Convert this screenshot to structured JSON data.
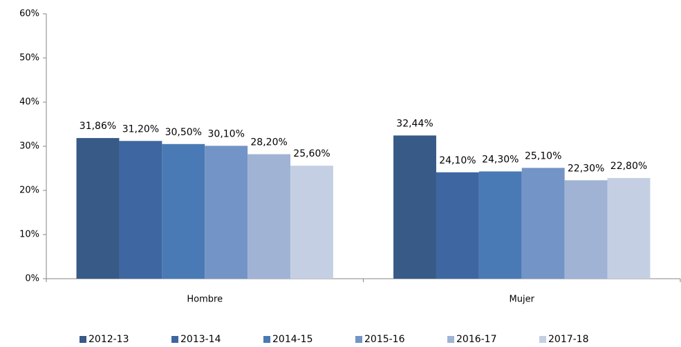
{
  "chart_data": {
    "type": "bar",
    "categories": [
      "Hombre",
      "Mujer"
    ],
    "series": [
      {
        "name": "2012-13",
        "color": "#375a87",
        "values": [
          31.86,
          32.44
        ],
        "value_labels": [
          "31,86%",
          "32,44%"
        ]
      },
      {
        "name": "2013-14",
        "color": "#3e66a0",
        "values": [
          31.2,
          24.1
        ],
        "value_labels": [
          "31,20%",
          "24,10%"
        ]
      },
      {
        "name": "2014-15",
        "color": "#4a7ab5",
        "values": [
          30.5,
          24.3
        ],
        "value_labels": [
          "30,50%",
          "24,30%"
        ]
      },
      {
        "name": "2015-16",
        "color": "#7394c6",
        "values": [
          30.1,
          25.1
        ],
        "value_labels": [
          "30,10%",
          "25,10%"
        ]
      },
      {
        "name": "2016-17",
        "color": "#a0b3d4",
        "values": [
          28.2,
          22.3
        ],
        "value_labels": [
          "28,20%",
          "22,30%"
        ]
      },
      {
        "name": "2017-18",
        "color": "#c4cfe3",
        "values": [
          25.6,
          22.8
        ],
        "value_labels": [
          "25,60%",
          "22,80%"
        ]
      }
    ],
    "ylim": [
      0,
      60
    ],
    "yticks": [
      {
        "value": 0,
        "label": "0%"
      },
      {
        "value": 10,
        "label": "10%"
      },
      {
        "value": 20,
        "label": "20%"
      },
      {
        "value": 30,
        "label": "30%"
      },
      {
        "value": 40,
        "label": "40%"
      },
      {
        "value": 50,
        "label": "50%"
      },
      {
        "value": 60,
        "label": "60%"
      }
    ],
    "legend": "bottom"
  }
}
